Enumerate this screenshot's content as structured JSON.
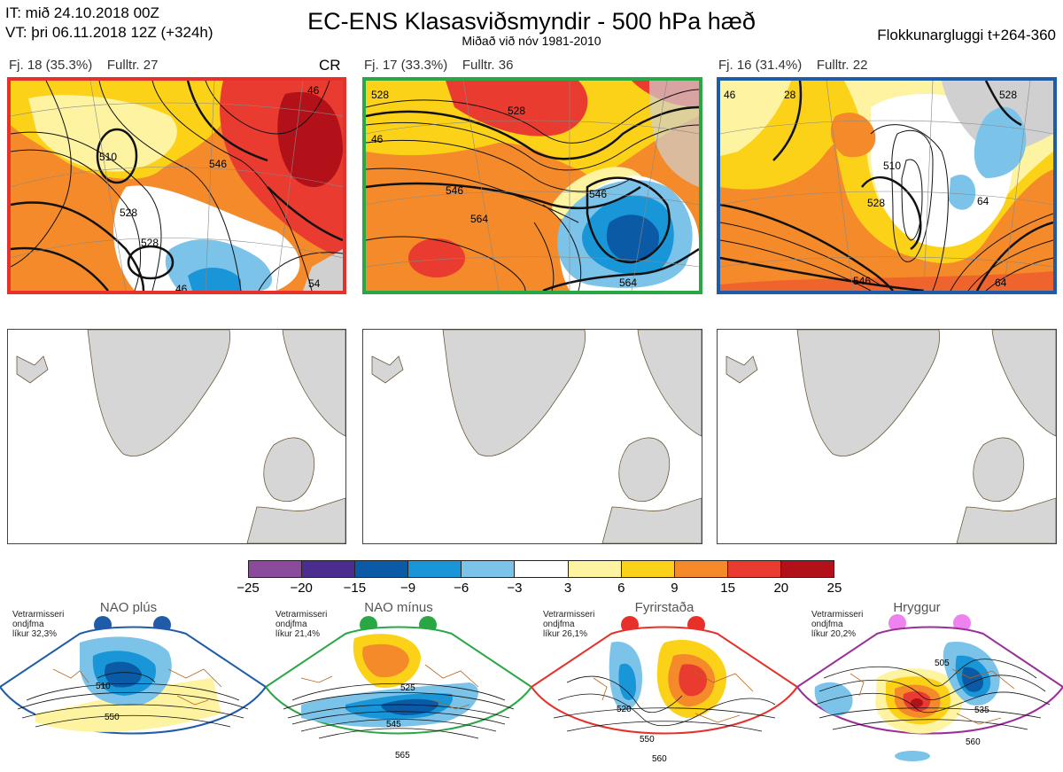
{
  "header": {
    "it_line": "IT: mið 24.10.2018 00Z",
    "vt_line": "VT: þri 06.11.2018 12Z  (+324h)",
    "title": "EC-ENS Klasasviðsmyndir - 500 hPa hæð",
    "subtitle": "Miðað við nóv 1981-2010",
    "window": "Flokkunargluggi t+264-360"
  },
  "clusters": [
    {
      "label": "Fj. 18 (35.3%)",
      "rep": "Fulltr. 27",
      "extra": "CR",
      "border": "#e8302a",
      "contours": [
        "510",
        "528",
        "528",
        "546",
        "46",
        "46",
        "54"
      ]
    },
    {
      "label": "Fj. 17 (33.3%)",
      "rep": "Fulltr. 36",
      "extra": "",
      "border": "#2aa745",
      "contours": [
        "528",
        "528",
        "46",
        "546",
        "564",
        "546",
        "564"
      ]
    },
    {
      "label": "Fj. 16 (31.4%)",
      "rep": "Fulltr. 22",
      "extra": "",
      "border": "#1f5ca8",
      "contours": [
        "28",
        "528",
        "46",
        "510",
        "528",
        "546",
        "64",
        "64"
      ]
    }
  ],
  "colorbar": {
    "colors": [
      "#8b4a9c",
      "#4a2d8e",
      "#0a5aa6",
      "#1896d8",
      "#7cc3ea",
      "#ffffff",
      "#fdf3a0",
      "#fcd219",
      "#f58a2a",
      "#ea3b30",
      "#b3111a"
    ],
    "ticks": [
      "−25",
      "−20",
      "−15",
      "−9",
      "−6",
      "−3",
      "3",
      "6",
      "9",
      "15",
      "20",
      "25"
    ]
  },
  "regimes": [
    {
      "name": "NAO plús",
      "note": [
        "Vetrarmisseri",
        "ondjfma",
        "líkur 32,3%"
      ],
      "color": "#1f5ca8",
      "contours": [
        "510",
        "550"
      ]
    },
    {
      "name": "NAO mínus",
      "note": [
        "Vetrarmisseri",
        "ondjfma",
        "líkur 21,4%"
      ],
      "color": "#2aa745",
      "contours": [
        "525",
        "545",
        "565"
      ]
    },
    {
      "name": "Fyrirstaða",
      "note": [
        "Vetrarmisseri",
        "ondjfma",
        "líkur 26,1%"
      ],
      "color": "#e8302a",
      "contours": [
        "520",
        "550",
        "560"
      ]
    },
    {
      "name": "Hryggur",
      "note": [
        "Vetrarmisseri",
        "ondjfma",
        "líkur 20,2%"
      ],
      "color": "#9b2f98",
      "contours": [
        "505",
        "535",
        "560"
      ]
    }
  ]
}
